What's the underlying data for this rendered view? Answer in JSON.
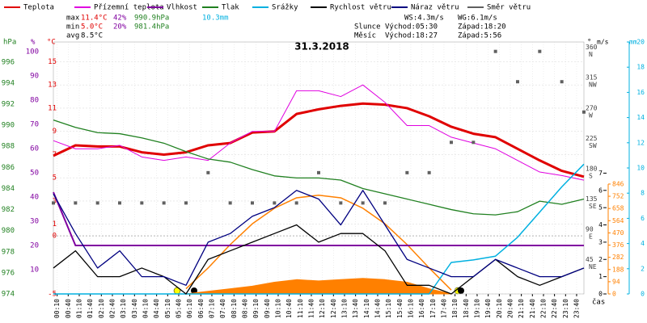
{
  "chart_data": {
    "type": "line",
    "title": "31.3.2018",
    "x_label": "čas",
    "x": [
      0,
      1,
      2,
      3,
      4,
      5,
      6,
      7,
      8,
      9,
      10,
      11,
      12,
      13,
      14,
      15,
      16,
      17,
      18,
      19,
      20,
      21,
      22,
      23,
      24
    ],
    "xlim": [
      0,
      24
    ],
    "xticks": [
      {
        "value": 0.17,
        "label": "00:10"
      },
      {
        "value": 0.67,
        "label": "00:40"
      },
      {
        "value": 1.17,
        "label": "01:10"
      },
      {
        "value": 1.67,
        "label": "01:40"
      },
      {
        "value": 2.17,
        "label": "02:10"
      },
      {
        "value": 2.67,
        "label": "02:40"
      },
      {
        "value": 3.17,
        "label": "03:10"
      },
      {
        "value": 3.67,
        "label": "03:40"
      },
      {
        "value": 4.17,
        "label": "04:10"
      },
      {
        "value": 4.67,
        "label": "04:40"
      },
      {
        "value": 5.17,
        "label": "05:10"
      },
      {
        "value": 5.67,
        "label": "05:40"
      },
      {
        "value": 6.17,
        "label": "06:10"
      },
      {
        "value": 6.67,
        "label": "06:40"
      },
      {
        "value": 7.17,
        "label": "07:10"
      },
      {
        "value": 7.67,
        "label": "07:40"
      },
      {
        "value": 8.17,
        "label": "08:10"
      },
      {
        "value": 8.67,
        "label": "08:40"
      },
      {
        "value": 9.17,
        "label": "09:10"
      },
      {
        "value": 9.67,
        "label": "09:40"
      },
      {
        "value": 10.17,
        "label": "10:10"
      },
      {
        "value": 10.67,
        "label": "10:40"
      },
      {
        "value": 11.17,
        "label": "11:10"
      },
      {
        "value": 11.67,
        "label": "11:40"
      },
      {
        "value": 12.17,
        "label": "12:10"
      },
      {
        "value": 12.67,
        "label": "12:40"
      },
      {
        "value": 13.17,
        "label": "13:10"
      },
      {
        "value": 13.67,
        "label": "13:40"
      },
      {
        "value": 14.17,
        "label": "14:10"
      },
      {
        "value": 14.67,
        "label": "14:40"
      },
      {
        "value": 15.17,
        "label": "15:10"
      },
      {
        "value": 15.67,
        "label": "15:40"
      },
      {
        "value": 16.17,
        "label": "16:10"
      },
      {
        "value": 16.67,
        "label": "16:40"
      },
      {
        "value": 17.17,
        "label": "17:10"
      },
      {
        "value": 17.67,
        "label": "17:40"
      },
      {
        "value": 18.17,
        "label": "18:10"
      },
      {
        "value": 18.67,
        "label": "18:40"
      },
      {
        "value": 19.17,
        "label": "19:10"
      },
      {
        "value": 19.67,
        "label": "19:40"
      },
      {
        "value": 20.17,
        "label": "20:10"
      },
      {
        "value": 20.67,
        "label": "20:40"
      },
      {
        "value": 21.17,
        "label": "21:10"
      },
      {
        "value": 21.67,
        "label": "21:40"
      },
      {
        "value": 22.17,
        "label": "22:10"
      },
      {
        "value": 22.67,
        "label": "22:40"
      },
      {
        "value": 23.17,
        "label": "23:10"
      },
      {
        "value": 23.67,
        "label": "23:40"
      }
    ],
    "grid": true,
    "axes": {
      "temp": {
        "label": "°C",
        "color": "#e00000",
        "lim": [
          -5,
          16.7
        ],
        "ticks": [
          -5,
          0,
          1,
          3,
          5,
          7,
          9,
          11,
          13,
          15
        ]
      },
      "humidity": {
        "label": "%",
        "color": "#8000a0",
        "lim": [
          0,
          104
        ],
        "ticks": [
          10,
          20,
          30,
          40,
          50,
          60,
          70,
          80,
          90,
          100
        ]
      },
      "pressure": {
        "label": "hPa",
        "color": "#208020",
        "lim": [
          974,
          997.9
        ],
        "ticks": [
          974,
          976,
          978,
          980,
          982,
          984,
          986,
          988,
          990,
          992,
          994,
          996
        ]
      },
      "direction": {
        "label": "°",
        "color": "#404040",
        "lim": [
          0,
          374
        ],
        "ticks": [
          45,
          90,
          135,
          180,
          225,
          270,
          315,
          360
        ],
        "tick_names": [
          "NE",
          "E",
          "SE",
          "S",
          "SW",
          "W",
          "NW",
          "N"
        ]
      },
      "wind": {
        "label": "m/s",
        "color": "#000000",
        "lim": [
          0,
          14.6
        ],
        "ticks": [
          0,
          1,
          2,
          3,
          4,
          5,
          6,
          7
        ]
      },
      "solar": {
        "color": "#ff8000",
        "lim": [
          0,
          1940
        ],
        "ticks": [
          0,
          94,
          188,
          282,
          376,
          470,
          564,
          658,
          752,
          846
        ]
      },
      "rain": {
        "label": "mm",
        "color": "#00b0e0",
        "lim": [
          0,
          20
        ],
        "ticks": [
          0,
          2,
          4,
          6,
          8,
          10,
          12,
          14,
          16,
          18,
          20
        ]
      }
    },
    "series": [
      {
        "name": "Teplota",
        "color": "#e00000",
        "axis": "temp",
        "values": [
          6.9,
          7.8,
          7.7,
          7.7,
          7.2,
          7.0,
          7.2,
          7.8,
          8.0,
          8.9,
          9.0,
          10.5,
          10.9,
          11.2,
          11.4,
          11.3,
          11.0,
          10.3,
          9.4,
          8.8,
          8.5,
          7.5,
          6.5,
          5.6,
          5.1
        ]
      },
      {
        "name": "Přízemní teplota",
        "color": "#e000e0",
        "axis": "temp",
        "values": [
          8.2,
          7.5,
          7.5,
          7.8,
          6.8,
          6.5,
          6.8,
          6.5,
          8.0,
          9.0,
          9.0,
          12.5,
          12.5,
          12.0,
          13.0,
          11.5,
          9.5,
          9.5,
          8.5,
          8.0,
          7.5,
          6.5,
          5.5,
          5.2,
          4.8
        ]
      },
      {
        "name": "Vlhkost",
        "color": "#8000a0",
        "axis": "humidity",
        "values": [
          42,
          20,
          20,
          20,
          20,
          20,
          20,
          20,
          20,
          20,
          20,
          20,
          20,
          20,
          20,
          20,
          20,
          20,
          20,
          20,
          20,
          20,
          20,
          20,
          20
        ]
      },
      {
        "name": "Tlak",
        "color": "#208020",
        "axis": "pressure",
        "values": [
          990.5,
          989.8,
          989.3,
          989.2,
          988.8,
          988.3,
          987.5,
          986.8,
          986.5,
          985.8,
          985.2,
          985.0,
          985.0,
          984.8,
          984.0,
          983.5,
          983.0,
          982.5,
          982.0,
          981.6,
          981.5,
          981.8,
          982.8,
          982.5,
          983.0
        ]
      },
      {
        "name": "Srážky",
        "color": "#00b0e0",
        "axis": "rain",
        "values": [
          0,
          0,
          0,
          0,
          0,
          0,
          0,
          0,
          0,
          0,
          0,
          0,
          0,
          0,
          0,
          0,
          0,
          0,
          2.5,
          2.7,
          3.0,
          4.5,
          6.5,
          8.5,
          10.3
        ]
      },
      {
        "name": "Rychlost větru",
        "color": "#000000",
        "axis": "wind",
        "values": [
          1.5,
          2.5,
          1.0,
          1.0,
          1.5,
          1.0,
          0,
          2.0,
          2.5,
          3.0,
          3.5,
          4.0,
          3.0,
          3.5,
          3.5,
          2.5,
          0.5,
          0.5,
          0,
          1.0,
          2.0,
          1.0,
          0.5,
          1.0,
          1.5
        ]
      },
      {
        "name": "Náraz větru",
        "color": "#000080",
        "axis": "wind",
        "values": [
          5.8,
          3.5,
          1.5,
          2.5,
          1.0,
          1.0,
          0.5,
          3.0,
          3.5,
          4.5,
          5.0,
          6.0,
          5.5,
          4.0,
          6.0,
          4.0,
          2.0,
          1.5,
          1.0,
          1.0,
          2.0,
          1.5,
          1.0,
          1.0,
          1.5
        ]
      },
      {
        "name": "Směr větru",
        "color": "#606060",
        "axis": "direction",
        "marker": "square",
        "values": [
          135,
          135,
          135,
          135,
          135,
          135,
          135,
          180,
          135,
          135,
          135,
          135,
          180,
          135,
          135,
          135,
          180,
          180,
          225,
          225,
          360,
          315,
          360,
          315,
          270
        ]
      }
    ],
    "solar_theoretical": {
      "color": "#ff8000",
      "axis": "solar",
      "values": [
        null,
        null,
        null,
        null,
        null,
        null,
        40,
        200,
        380,
        540,
        660,
        740,
        760,
        740,
        660,
        540,
        380,
        200,
        30,
        null,
        null,
        null,
        null,
        null,
        null
      ]
    },
    "solar": {
      "color": "#ff8000",
      "axis": "solar",
      "values": [
        null,
        null,
        null,
        null,
        null,
        null,
        0,
        20,
        40,
        60,
        90,
        110,
        100,
        110,
        120,
        110,
        90,
        40,
        0,
        null,
        null,
        null,
        null,
        null,
        null
      ]
    },
    "stats": {
      "max": {
        "label": "max",
        "temp": "11.4°C",
        "humidity": "42%",
        "pressure": "990.9hPa",
        "rain": "10.3mm"
      },
      "min": {
        "label": "min",
        "temp": "5.0°C",
        "humidity": "20%",
        "pressure": "981.4hPa"
      },
      "avg": {
        "label": "avg",
        "temp": "8.5°C"
      },
      "ws": "WS:4.3m/s",
      "wg": "WG:6.1m/s",
      "sun": {
        "label": "Slunce",
        "rise": "Východ:05:30",
        "set": "Západ:18:20"
      },
      "moon": {
        "label": "Měsíc",
        "rise": "Východ:18:27",
        "set": "Západ:5:56"
      }
    }
  }
}
